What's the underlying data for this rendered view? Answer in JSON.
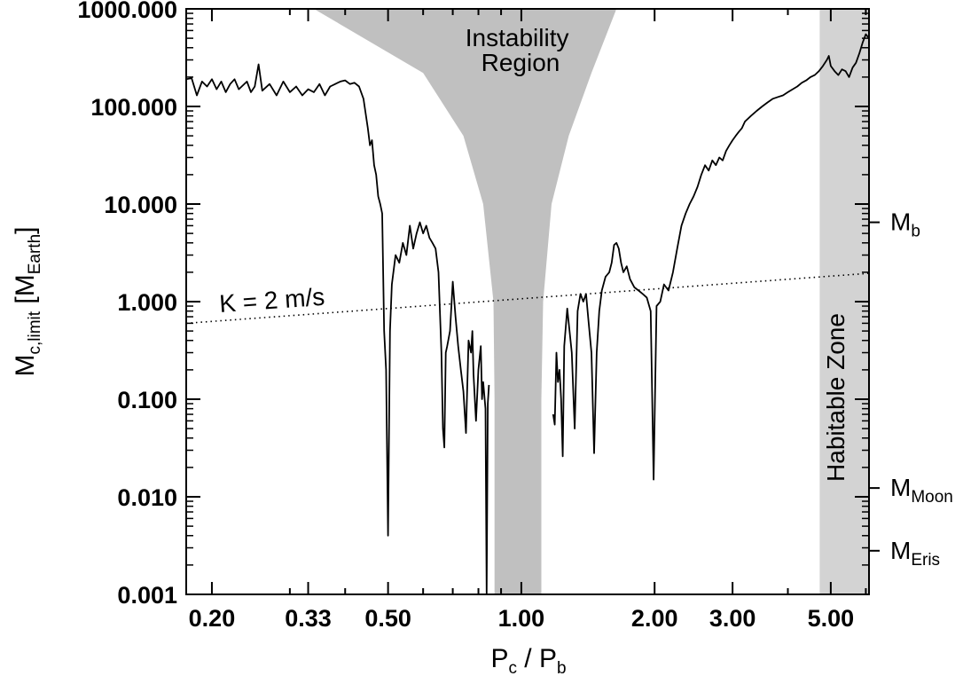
{
  "chart_data": {
    "type": "line",
    "xscale": "log",
    "yscale": "log",
    "xlim": [
      0.175,
      6.1
    ],
    "ylim": [
      0.001,
      1000
    ],
    "xlabel": {
      "main": "P",
      "sub1": "c",
      "mid": " / P",
      "sub2": "b"
    },
    "ylabel": {
      "main": "M",
      "sub1": "c,limit",
      "mid": " [M",
      "sub2": "Earth",
      "end": "]"
    },
    "x_ticks": [
      {
        "value": 0.2,
        "label": "0.20"
      },
      {
        "value": 0.33,
        "label": "0.33"
      },
      {
        "value": 0.5,
        "label": "0.50"
      },
      {
        "value": 1.0,
        "label": "1.00"
      },
      {
        "value": 2.0,
        "label": "2.00"
      },
      {
        "value": 3.0,
        "label": "3.00"
      },
      {
        "value": 5.0,
        "label": "5.00"
      }
    ],
    "y_ticks": [
      {
        "value": 0.001,
        "label": "0.001"
      },
      {
        "value": 0.01,
        "label": "0.010"
      },
      {
        "value": 0.1,
        "label": "0.100"
      },
      {
        "value": 1,
        "label": "1.000"
      },
      {
        "value": 10,
        "label": "10.000"
      },
      {
        "value": 100,
        "label": "100.000"
      },
      {
        "value": 1000,
        "label": "1000.000"
      }
    ],
    "right_axis_markers": [
      {
        "value": 6.5,
        "main": "M",
        "sub": "b"
      },
      {
        "value": 0.0123,
        "main": "M",
        "sub": "Moon"
      },
      {
        "value": 0.0028,
        "main": "M",
        "sub": "Eris"
      }
    ],
    "instability_region": {
      "label_line1": "Instability",
      "label_line2": "Region",
      "color": "#c0c0c0",
      "left_edge": [
        [
          0.34,
          1000
        ],
        [
          0.6,
          220
        ],
        [
          0.74,
          50
        ],
        [
          0.82,
          10
        ],
        [
          0.865,
          1
        ],
        [
          0.87,
          0.1
        ],
        [
          0.87,
          0.001
        ]
      ],
      "right_edge": [
        [
          1.64,
          1000
        ],
        [
          1.44,
          220
        ],
        [
          1.28,
          50
        ],
        [
          1.17,
          10
        ],
        [
          1.12,
          1
        ],
        [
          1.11,
          0.1
        ],
        [
          1.11,
          0.001
        ]
      ]
    },
    "habitable_zone": {
      "label": "Habitable Zone",
      "x_range": [
        4.72,
        6.1
      ],
      "color": "#d3d3d3"
    },
    "rv_limit_line": {
      "label": "K = 2 m/s",
      "style": "dotted",
      "points": [
        [
          0.175,
          0.6
        ],
        [
          6.1,
          1.95
        ]
      ]
    },
    "series": [
      {
        "segments": [
          [
            [
              0.175,
              190
            ],
            [
              0.18,
              195
            ],
            [
              0.185,
              130
            ],
            [
              0.19,
              180
            ],
            [
              0.195,
              160
            ],
            [
              0.2,
              190
            ],
            [
              0.205,
              150
            ],
            [
              0.21,
              180
            ],
            [
              0.215,
              140
            ],
            [
              0.22,
              170
            ],
            [
              0.225,
              190
            ],
            [
              0.23,
              150
            ],
            [
              0.24,
              180
            ],
            [
              0.245,
              140
            ],
            [
              0.25,
              160
            ],
            [
              0.255,
              270
            ],
            [
              0.26,
              145
            ],
            [
              0.27,
              170
            ],
            [
              0.28,
              130
            ],
            [
              0.29,
              180
            ],
            [
              0.3,
              140
            ],
            [
              0.31,
              160
            ],
            [
              0.32,
              130
            ],
            [
              0.33,
              150
            ],
            [
              0.34,
              140
            ],
            [
              0.35,
              170
            ],
            [
              0.36,
              130
            ],
            [
              0.37,
              160
            ],
            [
              0.38,
              170
            ],
            [
              0.39,
              180
            ],
            [
              0.4,
              185
            ],
            [
              0.41,
              170
            ],
            [
              0.42,
              175
            ],
            [
              0.43,
              160
            ],
            [
              0.44,
              120
            ],
            [
              0.45,
              60
            ],
            [
              0.455,
              40
            ],
            [
              0.46,
              45
            ],
            [
              0.465,
              25
            ],
            [
              0.47,
              20
            ],
            [
              0.475,
              12
            ],
            [
              0.48,
              10
            ],
            [
              0.485,
              8
            ],
            [
              0.49,
              0.5
            ],
            [
              0.495,
              0.2
            ],
            [
              0.5,
              0.004
            ],
            [
              0.505,
              0.5
            ],
            [
              0.51,
              1.5
            ],
            [
              0.52,
              3
            ],
            [
              0.53,
              2.5
            ],
            [
              0.54,
              4
            ],
            [
              0.55,
              3
            ],
            [
              0.56,
              6
            ],
            [
              0.57,
              3.5
            ],
            [
              0.58,
              5
            ],
            [
              0.59,
              6.5
            ],
            [
              0.6,
              5
            ],
            [
              0.61,
              6
            ],
            [
              0.62,
              4.5
            ],
            [
              0.63,
              4
            ],
            [
              0.64,
              3.5
            ],
            [
              0.65,
              2
            ],
            [
              0.66,
              0.3
            ],
            [
              0.665,
              0.05
            ],
            [
              0.67,
              0.032
            ],
            [
              0.675,
              0.3
            ],
            [
              0.68,
              0.35
            ],
            [
              0.69,
              0.5
            ],
            [
              0.7,
              1.6
            ],
            [
              0.71,
              0.7
            ],
            [
              0.72,
              0.35
            ],
            [
              0.73,
              0.2
            ],
            [
              0.74,
              0.12
            ],
            [
              0.75,
              0.045
            ],
            [
              0.76,
              0.4
            ],
            [
              0.77,
              0.3
            ],
            [
              0.775,
              0.5
            ],
            [
              0.78,
              0.18
            ],
            [
              0.79,
              0.06
            ],
            [
              0.8,
              0.2
            ],
            [
              0.81,
              0.35
            ],
            [
              0.815,
              0.1
            ],
            [
              0.82,
              0.15
            ],
            [
              0.83,
              0.08
            ],
            [
              0.835,
              0.001
            ],
            [
              0.84,
              0.09
            ],
            [
              0.845,
              0.14
            ]
          ],
          [
            [
              1.18,
              0.07
            ],
            [
              1.19,
              0.055
            ],
            [
              1.2,
              0.3
            ],
            [
              1.21,
              0.15
            ],
            [
              1.22,
              0.2
            ],
            [
              1.23,
              0.1
            ],
            [
              1.24,
              0.026
            ],
            [
              1.25,
              0.35
            ],
            [
              1.27,
              0.85
            ],
            [
              1.3,
              0.3
            ],
            [
              1.32,
              0.05
            ],
            [
              1.34,
              0.8
            ],
            [
              1.36,
              1.2
            ],
            [
              1.38,
              1.0
            ],
            [
              1.4,
              1.2
            ],
            [
              1.42,
              0.6
            ],
            [
              1.44,
              0.3
            ],
            [
              1.46,
              0.028
            ],
            [
              1.48,
              0.3
            ],
            [
              1.5,
              0.8
            ],
            [
              1.52,
              1.3
            ],
            [
              1.55,
              1.8
            ],
            [
              1.58,
              2.0
            ],
            [
              1.6,
              2.5
            ],
            [
              1.62,
              3.8
            ],
            [
              1.64,
              4.0
            ],
            [
              1.66,
              3.5
            ],
            [
              1.68,
              2.5
            ],
            [
              1.7,
              2.0
            ],
            [
              1.73,
              2.3
            ],
            [
              1.76,
              1.7
            ],
            [
              1.8,
              1.4
            ],
            [
              1.84,
              1.3
            ],
            [
              1.88,
              1.2
            ],
            [
              1.92,
              1.1
            ],
            [
              1.96,
              0.8
            ],
            [
              1.99,
              0.015
            ],
            [
              2.02,
              0.9
            ],
            [
              2.06,
              1.0
            ],
            [
              2.1,
              1.5
            ],
            [
              2.15,
              1.3
            ],
            [
              2.2,
              2.0
            ],
            [
              2.25,
              3.5
            ],
            [
              2.3,
              6
            ],
            [
              2.35,
              8
            ],
            [
              2.4,
              10
            ],
            [
              2.45,
              12
            ],
            [
              2.5,
              15
            ],
            [
              2.55,
              20
            ],
            [
              2.6,
              25
            ],
            [
              2.65,
              22
            ],
            [
              2.7,
              28
            ],
            [
              2.75,
              25
            ],
            [
              2.8,
              30
            ],
            [
              2.85,
              28
            ],
            [
              2.9,
              35
            ],
            [
              2.95,
              40
            ],
            [
              3.0,
              45
            ],
            [
              3.05,
              50
            ],
            [
              3.1,
              55
            ],
            [
              3.15,
              60
            ],
            [
              3.2,
              70
            ],
            [
              3.3,
              80
            ],
            [
              3.4,
              90
            ],
            [
              3.5,
              100
            ],
            [
              3.6,
              110
            ],
            [
              3.7,
              120
            ],
            [
              3.8,
              125
            ],
            [
              3.9,
              130
            ],
            [
              4.0,
              140
            ],
            [
              4.1,
              150
            ],
            [
              4.2,
              160
            ],
            [
              4.3,
              175
            ],
            [
              4.4,
              185
            ],
            [
              4.5,
              200
            ],
            [
              4.6,
              210
            ],
            [
              4.7,
              230
            ],
            [
              4.8,
              260
            ],
            [
              4.9,
              300
            ],
            [
              4.95,
              330
            ],
            [
              5.0,
              260
            ],
            [
              5.1,
              230
            ],
            [
              5.2,
              210
            ],
            [
              5.3,
              240
            ],
            [
              5.4,
              230
            ],
            [
              5.5,
              200
            ],
            [
              5.6,
              250
            ],
            [
              5.7,
              280
            ],
            [
              5.8,
              350
            ],
            [
              5.9,
              450
            ],
            [
              6.0,
              550
            ],
            [
              6.1,
              500
            ]
          ]
        ]
      }
    ]
  }
}
